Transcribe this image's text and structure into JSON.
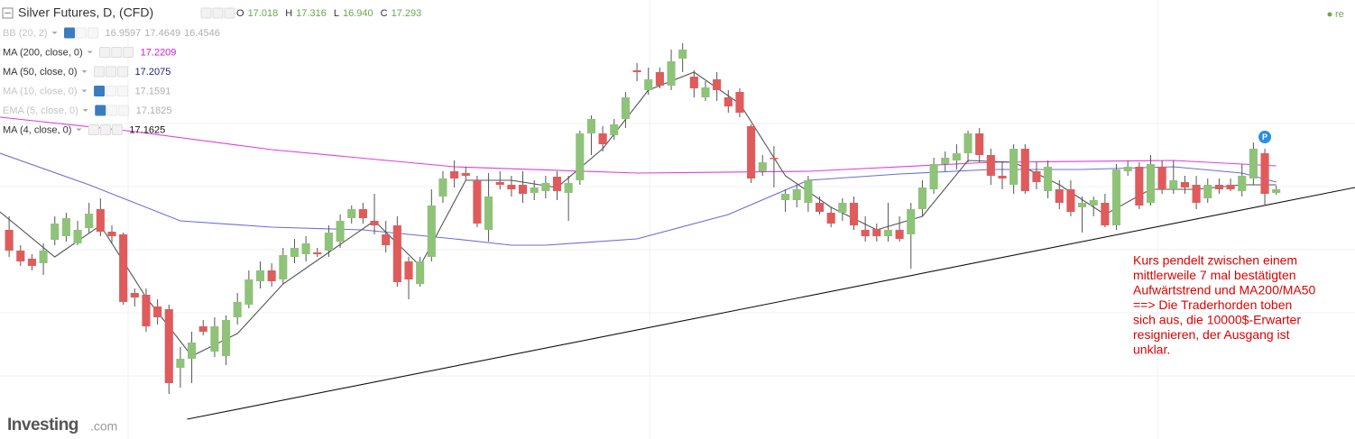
{
  "chart_data": {
    "type": "candlestick",
    "title": "Silver Futures, D, (CFD)",
    "ohlc_header": [
      {
        "key": "O",
        "value": 17.018
      },
      {
        "key": "H",
        "value": 17.316
      },
      {
        "key": "L",
        "value": {
          "value": 16.94,
          "label": "16.940"
        }
      },
      {
        "key": "C",
        "value": 17.293
      }
    ],
    "indicators": [
      {
        "label": "BB (20, 2)",
        "values": [
          16.9597,
          17.4649,
          16.4546
        ],
        "color": "#b0b0b0",
        "faded": true
      },
      {
        "label": "MA (200, close, 0)",
        "values": [
          17.2209
        ],
        "color": "#d21ad2",
        "faded": false
      },
      {
        "label": "MA (50, close, 0)",
        "values": [
          17.2075
        ],
        "color": "#1c1c8c",
        "faded": false
      },
      {
        "label": "MA (10, close, 0)",
        "values": [
          17.1591
        ],
        "color": "#b0b0b0",
        "faded": true
      },
      {
        "label": "EMA (5, close, 0)",
        "values": [
          17.1825
        ],
        "color": "#b0b0b0",
        "faded": true
      },
      {
        "label": "MA (4, close, 0)",
        "values": [
          17.1625
        ],
        "color": "#111111",
        "faded": false
      }
    ],
    "up_color": "#8ec379",
    "down_color": "#e05b5b",
    "xlim": [
      -0.8,
      117.9
    ],
    "ylim": [
      15.13,
      20
    ],
    "open": [
      17.45,
      17.22,
      17.13,
      17.08,
      17.34,
      17.38,
      17.3,
      17.47,
      17.68,
      17.43,
      17.4,
      16.75,
      16.73,
      16.6,
      16.57,
      15.92,
      16.02,
      16.38,
      16.1,
      16.05,
      16.48,
      16.62,
      16.88,
      17.0,
      16.9,
      17.15,
      17.18,
      17.2,
      17.22,
      17.32,
      17.58,
      17.68,
      17.55,
      17.4,
      17.5,
      17.1,
      16.85,
      17.15,
      17.82,
      18.1,
      18.08,
      18.0,
      17.45,
      17.98,
      17.95,
      17.95,
      17.86,
      17.88,
      18.04,
      17.86,
      18.0,
      18.52,
      18.52,
      18.5,
      18.68,
      19.22,
      19.0,
      19.2,
      19.05,
      19.35,
      19.15,
      18.92,
      19.12,
      18.92,
      18.98,
      18.6,
      18.1,
      18.25,
      17.78,
      17.78,
      17.75,
      17.75,
      17.64,
      17.64,
      17.75,
      17.45,
      17.46,
      17.38,
      17.45,
      17.4,
      17.68,
      17.9,
      18.18,
      18.22,
      18.3,
      18.52,
      18.28,
      18.05,
      17.95,
      18.35,
      18.1,
      17.88,
      17.9,
      17.9,
      17.7,
      17.72,
      17.75,
      17.5,
      18.1,
      18.15,
      17.75,
      18.15,
      17.9,
      17.98,
      17.95,
      17.8,
      17.95,
      17.95,
      17.88,
      18.02,
      18.3,
      17.86
    ],
    "high": [
      17.6,
      17.28,
      17.18,
      17.3,
      17.6,
      17.64,
      17.55,
      17.75,
      17.8,
      17.5,
      17.42,
      16.8,
      16.8,
      16.68,
      16.62,
      16.15,
      16.32,
      16.45,
      16.48,
      16.5,
      16.75,
      17.0,
      17.1,
      17.08,
      17.25,
      17.35,
      17.38,
      17.25,
      17.5,
      17.62,
      17.72,
      17.75,
      17.85,
      17.55,
      17.6,
      17.15,
      17.15,
      17.9,
      18.1,
      18.22,
      18.15,
      18.05,
      18.08,
      18.1,
      18.05,
      18.1,
      18.0,
      18.05,
      18.1,
      18.05,
      18.55,
      18.72,
      18.6,
      18.68,
      18.98,
      19.3,
      19.25,
      19.25,
      19.45,
      19.52,
      19.22,
      19.1,
      19.2,
      19.0,
      19.02,
      18.62,
      18.28,
      18.38,
      17.9,
      17.95,
      18.05,
      17.82,
      17.7,
      17.8,
      17.82,
      17.6,
      17.52,
      17.75,
      17.6,
      17.75,
      18.0,
      18.25,
      18.32,
      18.4,
      18.55,
      18.58,
      18.35,
      18.2,
      18.4,
      18.4,
      18.2,
      18.22,
      18.0,
      18.0,
      17.82,
      17.82,
      17.85,
      18.18,
      18.22,
      18.2,
      18.28,
      18.22,
      18.22,
      18.05,
      18.05,
      18.02,
      18.02,
      18.02,
      18.18,
      18.42,
      18.35,
      17.94
    ],
    "low": [
      17.15,
      17.05,
      17.0,
      16.95,
      17.28,
      17.32,
      17.28,
      17.42,
      17.38,
      17.3,
      16.62,
      16.6,
      16.32,
      16.4,
      15.63,
      15.7,
      15.75,
      16.28,
      16.04,
      15.95,
      16.4,
      16.58,
      16.8,
      16.82,
      16.85,
      17.08,
      17.1,
      17.15,
      17.15,
      17.25,
      17.52,
      17.52,
      17.4,
      17.2,
      16.82,
      16.68,
      16.82,
      17.1,
      17.75,
      17.92,
      18.0,
      17.48,
      17.32,
      17.9,
      17.82,
      17.75,
      17.78,
      17.8,
      17.78,
      17.55,
      17.95,
      18.28,
      18.32,
      18.45,
      18.58,
      19.1,
      18.95,
      19.02,
      19.0,
      19.2,
      18.92,
      18.88,
      18.88,
      18.75,
      18.7,
      17.97,
      18.05,
      17.92,
      17.65,
      17.7,
      17.65,
      17.62,
      17.48,
      17.55,
      17.45,
      17.32,
      17.32,
      17.32,
      17.32,
      17.02,
      17.6,
      17.85,
      18.1,
      18.12,
      18.2,
      18.2,
      17.95,
      17.9,
      17.85,
      17.85,
      17.9,
      17.8,
      17.68,
      17.6,
      17.42,
      17.6,
      17.48,
      17.45,
      18.05,
      17.68,
      17.72,
      17.85,
      17.85,
      17.85,
      17.68,
      17.75,
      17.85,
      17.88,
      17.82,
      17.95,
      17.72,
      17.84
    ],
    "close": [
      17.22,
      17.1,
      17.05,
      17.22,
      17.52,
      17.58,
      17.45,
      17.63,
      17.43,
      17.38,
      16.65,
      16.7,
      16.38,
      16.48,
      15.75,
      16.02,
      16.2,
      16.32,
      16.38,
      16.45,
      16.65,
      16.9,
      17.0,
      16.88,
      17.17,
      17.25,
      17.3,
      17.18,
      17.42,
      17.55,
      17.68,
      17.58,
      17.5,
      17.28,
      16.87,
      16.9,
      17.1,
      17.72,
      18.02,
      18.02,
      18.05,
      17.52,
      17.82,
      17.95,
      17.9,
      17.85,
      17.92,
      17.97,
      17.88,
      17.97,
      18.52,
      18.68,
      18.4,
      18.62,
      18.92,
      19.2,
      19.12,
      19.05,
      19.32,
      19.45,
      19.02,
      19.03,
      19.0,
      18.82,
      18.75,
      18.02,
      18.2,
      18.24,
      17.85,
      17.9,
      18.0,
      17.65,
      17.52,
      17.75,
      17.5,
      17.38,
      17.38,
      17.45,
      17.35,
      17.68,
      17.92,
      18.18,
      18.25,
      18.3,
      18.52,
      18.28,
      18.05,
      18.02,
      18.35,
      17.88,
      17.98,
      18.15,
      17.75,
      17.65,
      17.75,
      17.78,
      17.5,
      18.12,
      18.15,
      17.72,
      18.18,
      17.9,
      18.0,
      17.92,
      17.75,
      17.95,
      17.9,
      17.9,
      18.05,
      18.35,
      17.85,
      17.9
    ],
    "overlays": [
      {
        "name": "MA200",
        "color": "#e23be2",
        "x": [
          -0.8,
          11,
          23,
          39,
          55,
          70,
          86,
          102,
          111
        ],
        "values": [
          18.7,
          18.54,
          18.34,
          18.15,
          18.08,
          18.1,
          18.2,
          18.22,
          18.16
        ]
      },
      {
        "name": "MA50",
        "color": "#6c6cd8",
        "x": [
          -0.8,
          7,
          15,
          23,
          31,
          39,
          44,
          47,
          55,
          63,
          70,
          78,
          86,
          94,
          102,
          108,
          111
        ],
        "values": [
          18.3,
          17.95,
          17.55,
          17.48,
          17.45,
          17.35,
          17.28,
          17.28,
          17.35,
          17.62,
          18.0,
          18.07,
          18.12,
          18.12,
          18.15,
          18.08,
          17.98
        ]
      },
      {
        "name": "MA4",
        "color": "#555555",
        "x": [
          -0.8,
          4,
          8,
          12,
          16,
          20,
          24,
          28,
          32,
          36,
          40,
          44,
          48,
          52,
          56,
          60,
          64,
          68,
          72,
          76,
          80,
          84,
          88,
          92,
          96,
          100,
          104,
          108,
          111
        ],
        "values": [
          17.65,
          17.15,
          17.5,
          16.7,
          16.05,
          16.3,
          16.85,
          17.2,
          17.55,
          17.05,
          18.0,
          18.0,
          17.92,
          18.35,
          19.0,
          19.2,
          18.85,
          18.05,
          17.7,
          17.45,
          17.6,
          18.22,
          18.2,
          17.95,
          17.62,
          17.9,
          17.9,
          17.95,
          17.95
        ]
      },
      {
        "name": "Trendline",
        "color": "#111111",
        "x": [
          15.6,
          117.9
        ],
        "values": [
          15.35,
          17.92
        ]
      }
    ],
    "marker": {
      "text": "P",
      "x": 110,
      "y": 18.48,
      "color": "#2a8fe0"
    },
    "annotation": [
      "Kurs pendelt zwischen einem",
      "mittlerweile 7 mal bestätigten",
      "Aufwärtstrend und MA200/MA50",
      "==> Die Traderhorden toben",
      "sich aus, die 10000$-Erwarter",
      "resignieren, der Ausgang ist",
      "unklar."
    ],
    "watermark": [
      "Investing",
      ".com"
    ],
    "corner_text": "re"
  }
}
